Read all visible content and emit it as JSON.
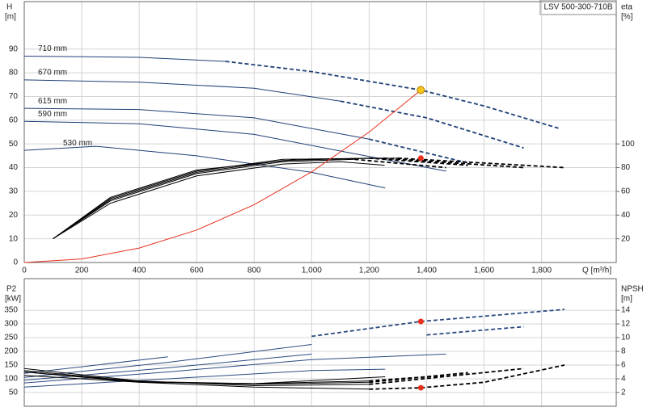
{
  "chart_data": [
    {
      "type": "line",
      "title": "LSV 500-300-710B",
      "xlabel": "Q [m³/h]",
      "ylabel": {
        "name": "H",
        "unit": "[m]"
      },
      "y2label": {
        "name": "eta",
        "unit": "[%]"
      },
      "xlim": [
        0,
        2060
      ],
      "ylim": [
        0,
        110
      ],
      "y2lim": [
        0,
        220
      ],
      "grid": true,
      "xticks": [
        0,
        200,
        400,
        600,
        800,
        {
          "value": 1000,
          "label": "1,000"
        },
        {
          "value": 1200,
          "label": "1,200"
        },
        {
          "value": 1400,
          "label": "1,400"
        },
        {
          "value": 1600,
          "label": "1,600"
        },
        {
          "value": 1800,
          "label": "1,800"
        }
      ],
      "yticks": [
        0,
        10,
        20,
        30,
        40,
        50,
        60,
        70,
        80,
        90
      ],
      "y2ticks": [
        20,
        40,
        60,
        80,
        100
      ],
      "series": [
        {
          "name": "710 mm",
          "color": "#1f3f77",
          "x": [
            0,
            400,
            700,
            1000,
            1380,
            1600,
            1865
          ],
          "values": [
            87,
            86.5,
            84.8,
            80.5,
            72.7,
            66,
            56.4
          ],
          "dash_from": 700
        },
        {
          "name": "670 mm",
          "color": "#1f3f77",
          "x": [
            0,
            400,
            800,
            1100,
            1400,
            1738
          ],
          "values": [
            77,
            76,
            73.5,
            68,
            61,
            48.3
          ],
          "dash_from": 1100
        },
        {
          "name": "615 mm",
          "color": "#1f3f77",
          "x": [
            0,
            400,
            800,
            1200,
            1544
          ],
          "values": [
            65,
            64.5,
            61,
            52,
            42
          ],
          "dash_from": 1200
        },
        {
          "name": "590 mm",
          "color": "#1f3f77",
          "x": [
            0,
            400,
            800,
            1100,
            1468
          ],
          "values": [
            59.5,
            58.5,
            54,
            47,
            38.5
          ],
          "dash_from": 1468
        },
        {
          "name": "530 mm",
          "color": "#1f3f77",
          "x": [
            0,
            250,
            600,
            1000,
            1256
          ],
          "values": [
            47.3,
            49,
            45,
            38,
            31.4
          ],
          "dash_from": 1256
        },
        {
          "color": "#000000",
          "axis": "y2",
          "x": [
            100,
            300,
            600,
            900,
            1100,
            1254
          ],
          "values": [
            20,
            50,
            73,
            83,
            85,
            82
          ],
          "dash_from": 1254
        },
        {
          "color": "#000000",
          "axis": "y2",
          "x": [
            100,
            300,
            600,
            900,
            1150,
            1468
          ],
          "values": [
            20,
            52,
            75,
            85,
            87,
            80
          ],
          "dash_from": 1150
        },
        {
          "color": "#000000",
          "axis": "y2",
          "x": [
            100,
            300,
            600,
            900,
            1200,
            1544
          ],
          "values": [
            20,
            53,
            76,
            86,
            88,
            82
          ],
          "dash_from": 1200
        },
        {
          "color": "#000000",
          "axis": "y2",
          "x": [
            100,
            300,
            600,
            900,
            1250,
            1738
          ],
          "values": [
            20,
            54,
            77,
            87,
            88,
            80
          ],
          "dash_from": 1250
        },
        {
          "color": "#000000",
          "axis": "y2",
          "x": [
            100,
            300,
            600,
            950,
            1300,
            1880
          ],
          "values": [
            20,
            55,
            78,
            87,
            88,
            80
          ],
          "dash_from": 1300
        },
        {
          "color": "#e8301c",
          "x": [
            0,
            200,
            400,
            600,
            800,
            1000,
            1200,
            1380
          ],
          "values": [
            0,
            1.5,
            6.1,
            13.7,
            24.4,
            38.2,
            55,
            72.7
          ],
          "dash_from": 1380
        }
      ],
      "markers": [
        {
          "x": 1380,
          "value": 72.7,
          "color": "#f5c518"
        },
        {
          "x": 1380,
          "value": 88,
          "color": "#e8301c",
          "axis": "y2"
        }
      ]
    },
    {
      "type": "line",
      "ylabel": {
        "name": "P2",
        "unit": "[kW]"
      },
      "y2label": {
        "name": "NPSH",
        "unit": "[m]"
      },
      "ylim": [
        0,
        465
      ],
      "y2lim": [
        0,
        18.6
      ],
      "grid": true,
      "yticks": [
        50,
        100,
        150,
        200,
        250,
        300,
        350
      ],
      "y2ticks": [
        2,
        4,
        6,
        8,
        10,
        12,
        14
      ],
      "series": [
        {
          "color": "#2b4a80",
          "x": [
            0,
            500,
            1000,
            1380,
            1880
          ],
          "values": [
            120,
            180,
            255,
            309,
            353
          ],
          "dash_from": 700
        },
        {
          "color": "#2b4a80",
          "x": [
            0,
            500,
            1000,
            1400,
            1738
          ],
          "values": [
            105,
            160,
            225,
            260,
            290
          ],
          "dash_from": 1100
        },
        {
          "color": "#2b4a80",
          "x": [
            0,
            500,
            1000,
            1544
          ],
          "values": [
            95,
            140,
            190,
            220
          ],
          "dash_from": 1200
        },
        {
          "color": "#2b4a80",
          "x": [
            0,
            500,
            1000,
            1468
          ],
          "values": [
            85,
            125,
            170,
            190
          ],
          "dash_from": 1468
        },
        {
          "color": "#2b4a80",
          "x": [
            0,
            500,
            1000,
            1256
          ],
          "values": [
            70,
            100,
            130,
            135
          ],
          "dash_from": 1256
        },
        {
          "color": "#000000",
          "axis": "y2",
          "x": [
            0,
            400,
            800,
            1200,
            1380,
            1600,
            1880
          ],
          "values": [
            5,
            3.5,
            2.8,
            2.5,
            2.7,
            3.5,
            6
          ],
          "dash_from": 1200
        },
        {
          "color": "#000000",
          "axis": "y2",
          "x": [
            0,
            400,
            800,
            1200,
            1738
          ],
          "values": [
            5.5,
            3.7,
            3,
            3.2,
            5.5
          ],
          "dash_from": 1200
        },
        {
          "color": "#000000",
          "axis": "y2",
          "x": [
            0,
            400,
            800,
            1200,
            1544
          ],
          "values": [
            5.2,
            3.6,
            3.2,
            3.5,
            4.9
          ],
          "dash_from": 1200
        },
        {
          "color": "#000000",
          "axis": "y2",
          "x": [
            0,
            400,
            800,
            1200,
            1468
          ],
          "values": [
            5,
            3.6,
            3.3,
            3.7,
            4.5
          ],
          "dash_from": 1200
        },
        {
          "color": "#000000",
          "axis": "y2",
          "x": [
            0,
            400,
            800,
            1256
          ],
          "values": [
            4.5,
            3.5,
            3.3,
            4.3
          ],
          "dash_from": 1256
        }
      ],
      "markers": [
        {
          "x": 1380,
          "value": 309,
          "color": "#e8301c"
        },
        {
          "x": 1380,
          "value": 2.7,
          "color": "#e8301c",
          "axis": "y2"
        }
      ]
    }
  ]
}
